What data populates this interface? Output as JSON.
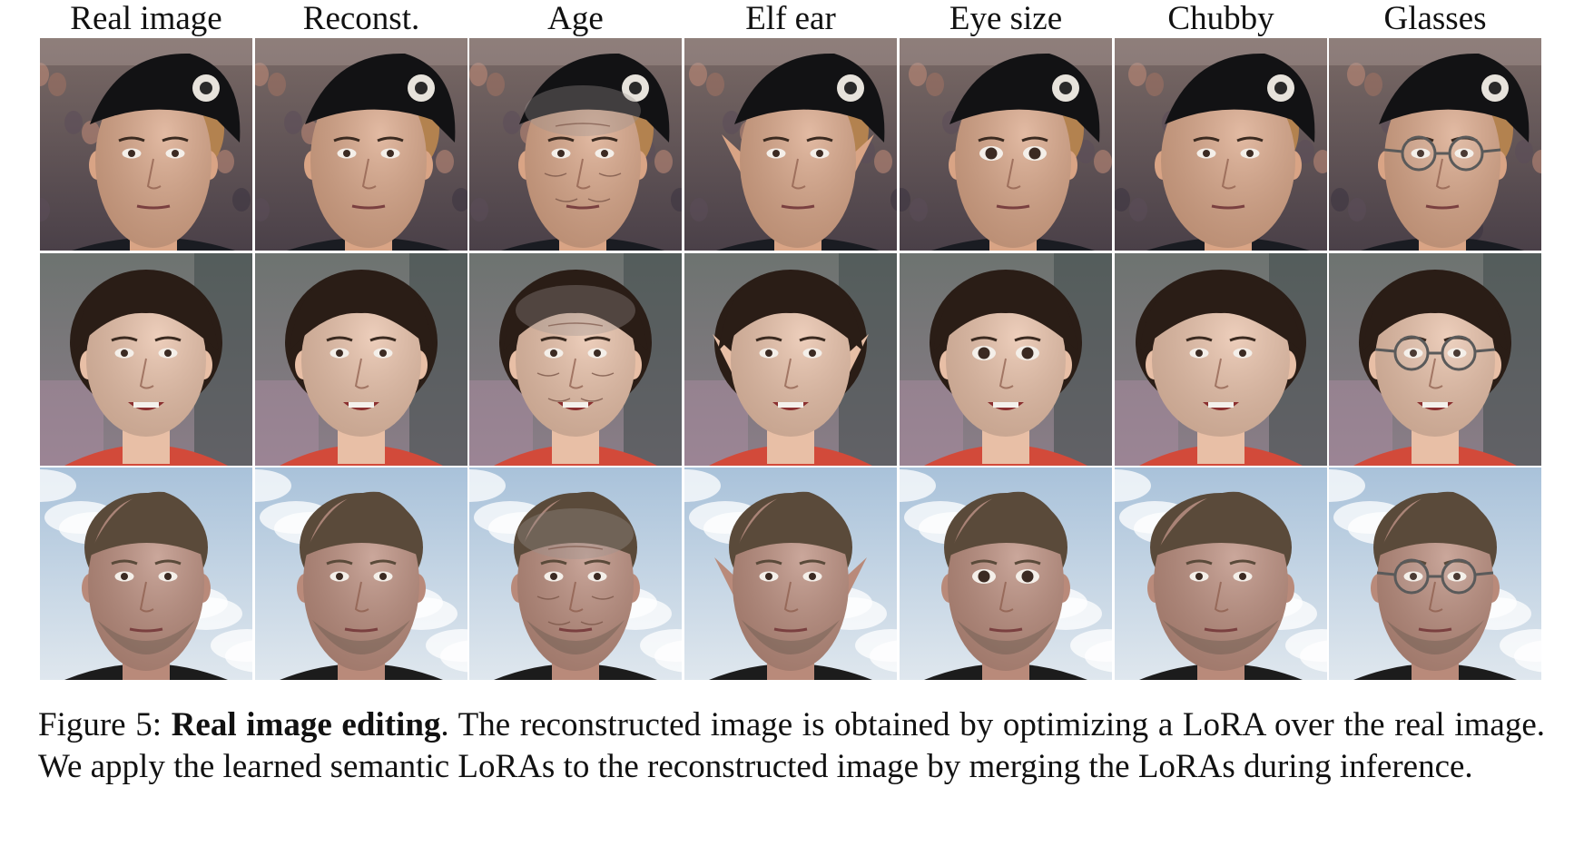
{
  "figure": {
    "column_headers": [
      "Real image",
      "Reconst.",
      "Age",
      "Elf ear",
      "Eye size",
      "Chubby",
      "Glasses"
    ],
    "rows": [
      {
        "subject": "man-in-black-beret",
        "background": "crowd",
        "colors": {
          "bg_top": "#7a6a66",
          "bg_bottom": "#4a4048",
          "skin": "#d9a485",
          "hair": "#b3824f",
          "hat": "#121214",
          "shirt": "#1a1c22"
        }
      },
      {
        "subject": "short-haired-woman",
        "background": "grey-wall",
        "colors": {
          "bg_top": "#6d7370",
          "bg_bottom": "#8b7d88",
          "skin": "#e8bfa6",
          "hair": "#2a1d16",
          "hat": "",
          "shirt": "#d24a3a"
        }
      },
      {
        "subject": "man-under-cloudy-sky",
        "background": "sky",
        "colors": {
          "bg_top": "#a9c2da",
          "bg_bottom": "#dfe7ee",
          "skin": "#b98a7a",
          "hair": "#5a4a3a",
          "hat": "",
          "shirt": "#1c1c1c"
        }
      }
    ],
    "edits": {
      "Real image": "none",
      "Reconst.": "none",
      "Age": "wrinkles-grey",
      "Elf ear": "pointed-ears",
      "Eye size": "large-eyes",
      "Chubby": "wide-face",
      "Glasses": "eyeglasses"
    }
  },
  "caption": {
    "label": "Figure 5: ",
    "bold": "Real image editing",
    "rest": ". The reconstructed image is obtained by optimizing a LoRA over the real image. We apply the learned semantic LoRAs to the reconstructed image by merging the LoRAs during inference."
  }
}
